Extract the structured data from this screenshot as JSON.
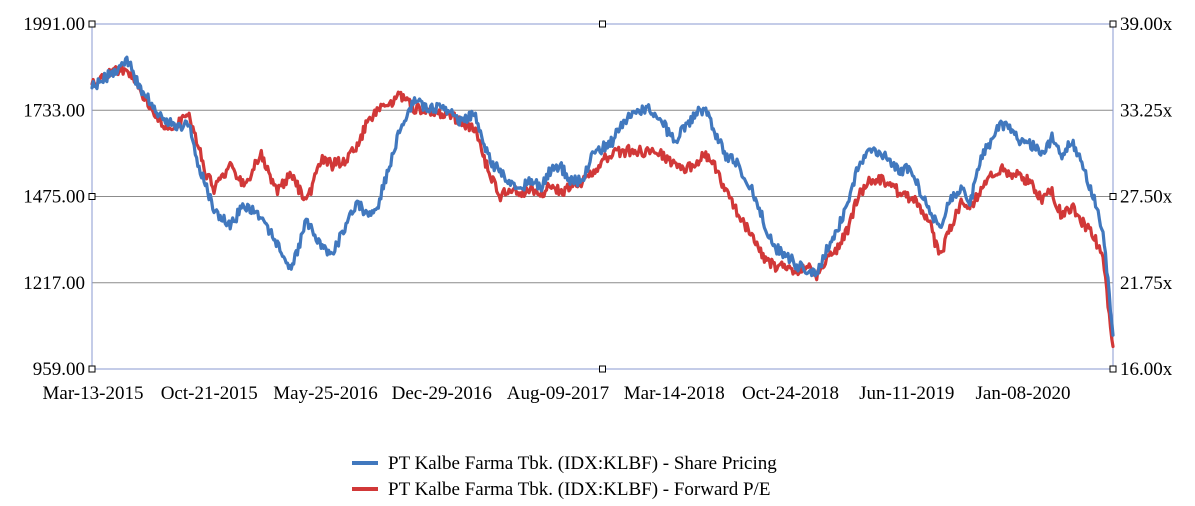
{
  "chart_data": {
    "type": "line",
    "title": "",
    "x_tick_labels": [
      "Mar-13-2015",
      "Oct-21-2015",
      "May-25-2016",
      "Dec-29-2016",
      "Aug-09-2017",
      "Mar-14-2018",
      "Oct-24-2018",
      "Jun-11-2019",
      "Jan-08-2020"
    ],
    "y_left": {
      "ticks": [
        "1991.00",
        "1733.00",
        "1475.00",
        "1217.00",
        "959.00"
      ],
      "min": 959,
      "max": 1991
    },
    "y_right": {
      "ticks": [
        "39.00x",
        "33.25x",
        "27.50x",
        "21.75x",
        "16.00x"
      ],
      "min": 16.0,
      "max": 39.0
    },
    "gridlines": true,
    "legend_position": "bottom",
    "series": [
      {
        "name": "PT Kalbe Farma Tbk. (IDX:KLBF) - Share Pricing",
        "color": "#4178be",
        "axis": "left",
        "x": [
          0,
          0.015,
          0.025,
          0.035,
          0.045,
          0.055,
          0.065,
          0.075,
          0.085,
          0.095,
          0.105,
          0.11,
          0.12,
          0.135,
          0.15,
          0.165,
          0.18,
          0.195,
          0.21,
          0.225,
          0.235,
          0.25,
          0.26,
          0.27,
          0.28,
          0.29,
          0.3,
          0.315,
          0.33,
          0.345,
          0.36,
          0.375,
          0.39,
          0.4,
          0.41,
          0.42,
          0.43,
          0.44,
          0.45,
          0.46,
          0.47,
          0.48,
          0.49,
          0.5,
          0.51,
          0.52,
          0.53,
          0.54,
          0.55,
          0.56,
          0.57,
          0.58,
          0.59,
          0.6,
          0.61,
          0.62,
          0.63,
          0.64,
          0.65,
          0.66,
          0.67,
          0.68,
          0.69,
          0.7,
          0.71,
          0.72,
          0.73,
          0.74,
          0.75,
          0.76,
          0.77,
          0.78,
          0.79,
          0.8,
          0.81,
          0.82,
          0.83,
          0.84,
          0.85,
          0.86,
          0.87,
          0.88,
          0.89,
          0.9,
          0.91,
          0.92,
          0.93,
          0.94,
          0.95,
          0.96,
          0.97,
          0.98,
          0.99,
          1.0
        ],
        "values": [
          1800,
          1835,
          1860,
          1880,
          1810,
          1770,
          1720,
          1700,
          1680,
          1700,
          1560,
          1520,
          1430,
          1390,
          1450,
          1420,
          1340,
          1250,
          1400,
          1320,
          1300,
          1400,
          1460,
          1420,
          1450,
          1550,
          1660,
          1760,
          1740,
          1740,
          1700,
          1720,
          1580,
          1550,
          1520,
          1500,
          1520,
          1500,
          1560,
          1560,
          1520,
          1520,
          1600,
          1620,
          1640,
          1700,
          1720,
          1740,
          1730,
          1690,
          1640,
          1680,
          1720,
          1740,
          1670,
          1600,
          1580,
          1530,
          1470,
          1380,
          1320,
          1300,
          1270,
          1260,
          1240,
          1320,
          1370,
          1460,
          1560,
          1620,
          1600,
          1590,
          1550,
          1560,
          1500,
          1440,
          1380,
          1460,
          1500,
          1460,
          1580,
          1640,
          1690,
          1680,
          1640,
          1630,
          1600,
          1650,
          1600,
          1640,
          1580,
          1480,
          1380,
          1060
        ]
      },
      {
        "name": "PT Kalbe Farma Tbk. (IDX:KLBF) - Forward P/E",
        "color": "#d13838",
        "axis": "right",
        "x": [
          0,
          0.015,
          0.025,
          0.035,
          0.045,
          0.055,
          0.065,
          0.075,
          0.085,
          0.095,
          0.105,
          0.11,
          0.12,
          0.135,
          0.15,
          0.165,
          0.18,
          0.195,
          0.21,
          0.225,
          0.235,
          0.25,
          0.26,
          0.27,
          0.28,
          0.29,
          0.3,
          0.315,
          0.33,
          0.345,
          0.36,
          0.375,
          0.39,
          0.4,
          0.41,
          0.42,
          0.43,
          0.44,
          0.45,
          0.46,
          0.47,
          0.48,
          0.49,
          0.5,
          0.51,
          0.52,
          0.53,
          0.54,
          0.55,
          0.56,
          0.57,
          0.58,
          0.59,
          0.6,
          0.61,
          0.62,
          0.63,
          0.64,
          0.65,
          0.66,
          0.67,
          0.68,
          0.69,
          0.7,
          0.71,
          0.72,
          0.73,
          0.74,
          0.75,
          0.76,
          0.77,
          0.78,
          0.79,
          0.8,
          0.81,
          0.82,
          0.83,
          0.84,
          0.85,
          0.86,
          0.87,
          0.88,
          0.89,
          0.9,
          0.91,
          0.92,
          0.93,
          0.94,
          0.95,
          0.96,
          0.97,
          0.98,
          0.99,
          1.0
        ],
        "values": [
          35.0,
          35.6,
          36.0,
          35.8,
          35.0,
          33.6,
          32.7,
          32.0,
          32.4,
          33.0,
          30.7,
          29.3,
          28.0,
          29.5,
          28.2,
          30.4,
          27.8,
          29.0,
          27.0,
          30.0,
          29.6,
          30.0,
          30.9,
          32.5,
          33.2,
          33.6,
          34.3,
          33.4,
          33.2,
          33.0,
          32.6,
          32.0,
          28.8,
          27.5,
          28.0,
          27.8,
          28.0,
          27.5,
          28.4,
          27.7,
          28.4,
          28.4,
          29.0,
          29.9,
          30.4,
          30.5,
          30.6,
          30.5,
          30.7,
          30.2,
          29.6,
          29.3,
          29.7,
          30.3,
          29.5,
          28.0,
          26.7,
          25.5,
          24.5,
          23.3,
          22.8,
          22.8,
          22.5,
          23.0,
          22.3,
          23.5,
          24.0,
          25.3,
          27.5,
          28.5,
          28.7,
          28.4,
          27.8,
          27.5,
          27.0,
          25.8,
          23.5,
          25.2,
          27.0,
          26.8,
          27.9,
          28.9,
          29.3,
          29.0,
          28.8,
          28.5,
          27.3,
          27.8,
          26.2,
          26.8,
          25.8,
          25.0,
          23.5,
          17.5
        ]
      }
    ]
  }
}
